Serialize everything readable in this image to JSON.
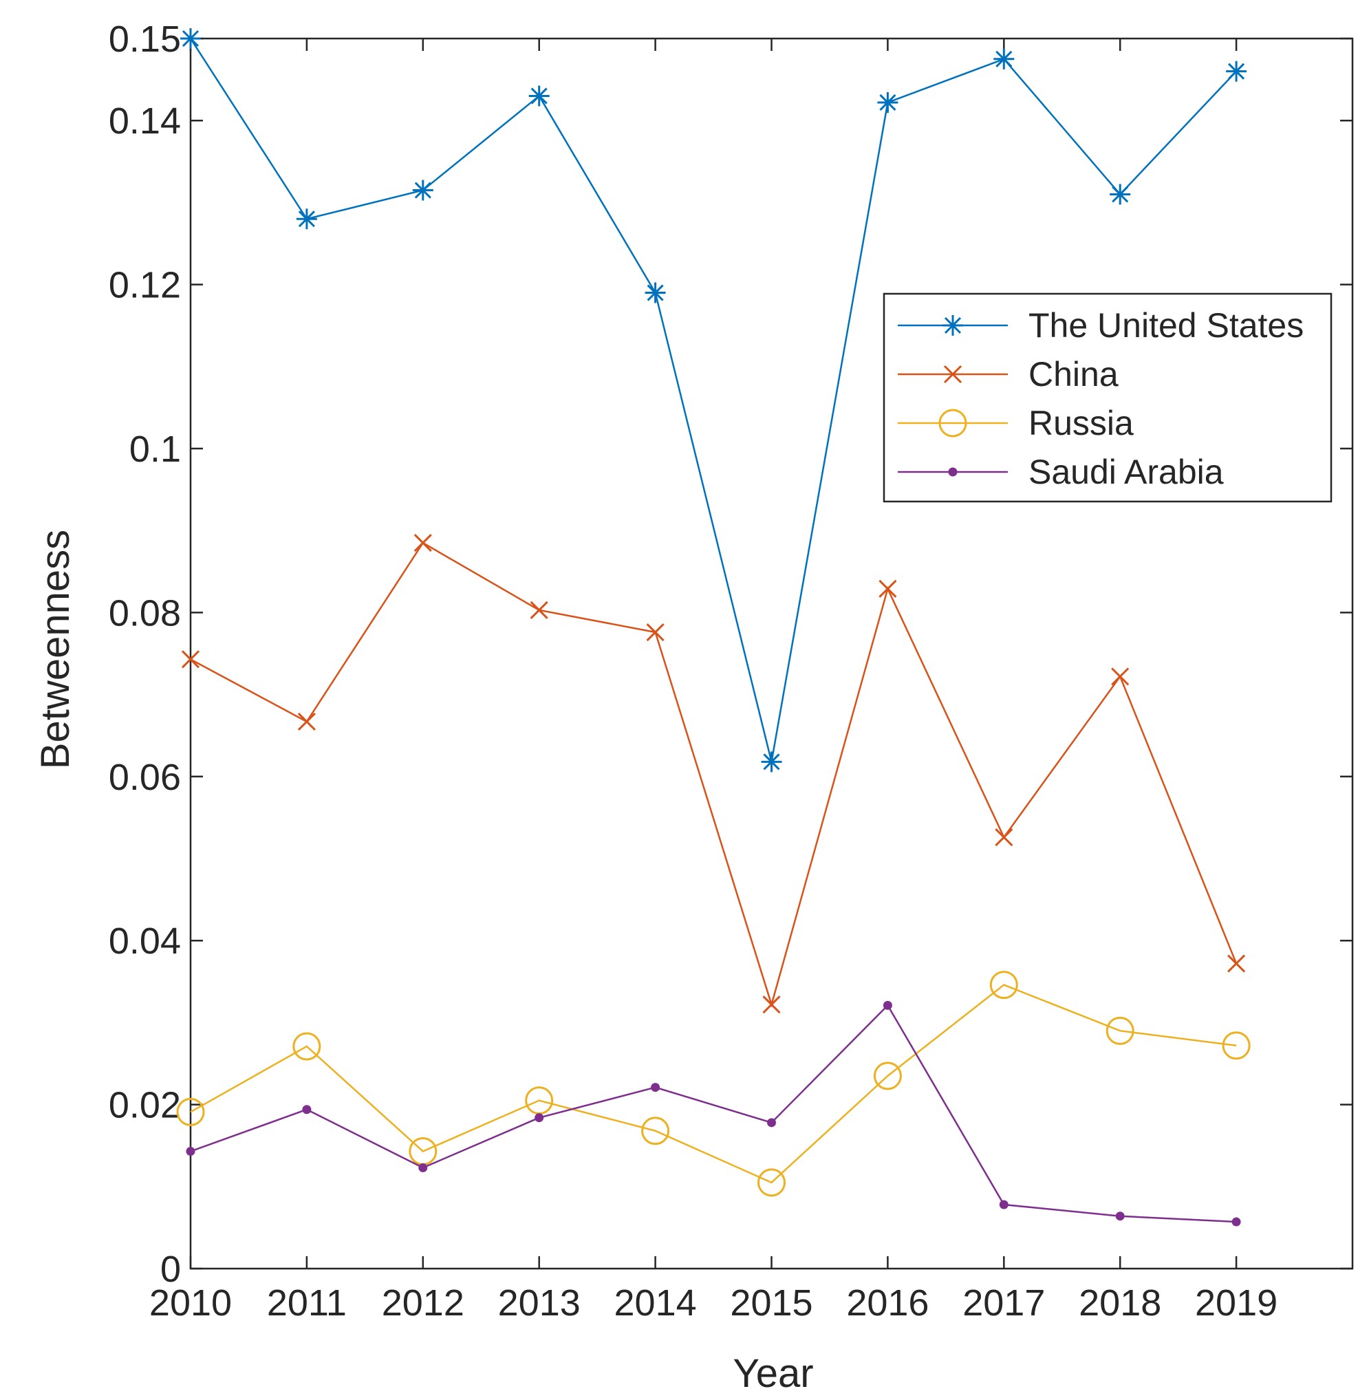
{
  "chart_data": {
    "type": "line",
    "title": "",
    "xlabel": "Year",
    "ylabel": "Betweenness",
    "x": [
      2010,
      2011,
      2012,
      2013,
      2014,
      2015,
      2016,
      2017,
      2018,
      2019
    ],
    "xlim": [
      2010,
      2020
    ],
    "ylim": [
      0,
      0.15
    ],
    "x_ticks": [
      "2010",
      "2011",
      "2012",
      "2013",
      "2014",
      "2015",
      "2016",
      "2017",
      "2018",
      "2019"
    ],
    "y_ticks": [
      {
        "value": 0,
        "label": "0"
      },
      {
        "value": 0.02,
        "label": "0.02"
      },
      {
        "value": 0.04,
        "label": "0.04"
      },
      {
        "value": 0.06,
        "label": "0.06"
      },
      {
        "value": 0.08,
        "label": "0.08"
      },
      {
        "value": 0.1,
        "label": "0.1"
      },
      {
        "value": 0.12,
        "label": "0.12"
      },
      {
        "value": 0.14,
        "label": "0.14"
      },
      {
        "value": 0.15,
        "label": "0.15"
      }
    ],
    "grid": false,
    "legend_position": "upper-right",
    "series": [
      {
        "name": "The United States",
        "color": "#0072BD",
        "marker": "asterisk",
        "values": [
          0.15,
          0.128,
          0.1315,
          0.143,
          0.119,
          0.0618,
          0.1422,
          0.1475,
          0.131,
          0.146
        ]
      },
      {
        "name": "China",
        "color": "#D95319",
        "marker": "cross",
        "values": [
          0.0743,
          0.0667,
          0.0885,
          0.0803,
          0.0776,
          0.0322,
          0.0829,
          0.0526,
          0.0722,
          0.0372
        ]
      },
      {
        "name": "Russia",
        "color": "#EDB120",
        "marker": "circle",
        "values": [
          0.0191,
          0.0271,
          0.0143,
          0.0205,
          0.0168,
          0.0105,
          0.0235,
          0.0346,
          0.029,
          0.0272
        ]
      },
      {
        "name": "Saudi Arabia",
        "color": "#7E2F8E",
        "marker": "dot",
        "values": [
          0.0143,
          0.0194,
          0.0123,
          0.0184,
          0.0221,
          0.0178,
          0.0321,
          0.0078,
          0.0064,
          0.0057
        ]
      }
    ]
  }
}
